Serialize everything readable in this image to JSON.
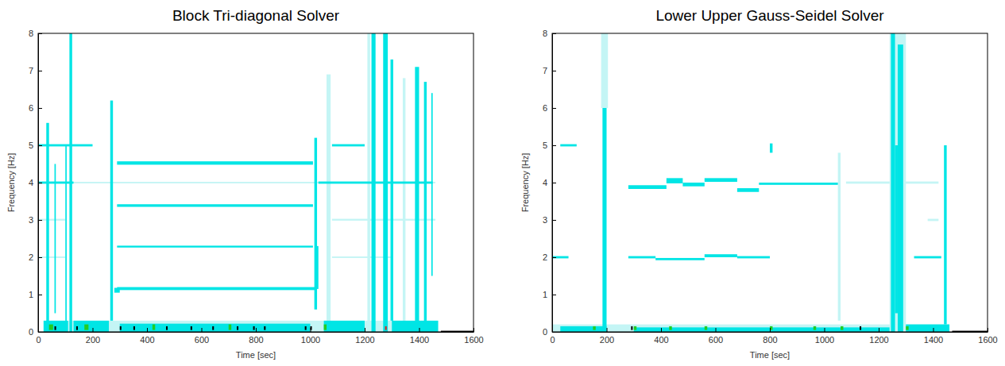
{
  "chart_data": [
    {
      "type": "heatmap",
      "title": "Block Tri-diagonal Solver",
      "x_label": "Time [sec]",
      "y_label": "Frequency [Hz]",
      "xlim": [
        0,
        1600
      ],
      "xticks": [
        0,
        200,
        400,
        600,
        800,
        1000,
        1200,
        1400,
        1600
      ],
      "ylim": [
        0,
        8
      ],
      "yticks": [
        0,
        1,
        2,
        3,
        4,
        5,
        6,
        7,
        8
      ],
      "grid": false,
      "layers": [
        {
          "color": "#c4f5f5",
          "cells": [
            [
              0,
              1460,
              3.98,
              4.02
            ],
            [
              0,
              100,
              2.98,
              3.03
            ],
            [
              1080,
              1460,
              2.98,
              3.03
            ],
            [
              0,
              100,
              1.98,
              2.02
            ],
            [
              1080,
              1300,
              1.98,
              2.02
            ],
            [
              1210,
              1220,
              0,
              8
            ],
            [
              1340,
              1350,
              0.3,
              6.8
            ],
            [
              20,
              1470,
              0,
              0.3
            ],
            [
              1060,
              1075,
              0.2,
              6.9
            ]
          ]
        },
        {
          "color": "#00e5e5",
          "cells": [
            [
              115,
              125,
              0,
              8
            ],
            [
              265,
              275,
              0.3,
              6.2
            ],
            [
              1015,
              1025,
              0.6,
              5.2
            ],
            [
              1225,
              1240,
              0,
              8
            ],
            [
              1268,
              1285,
              0,
              8
            ],
            [
              1295,
              1305,
              0.3,
              7.3
            ],
            [
              1385,
              1400,
              0,
              7.1
            ],
            [
              1418,
              1428,
              0.1,
              6.7
            ],
            [
              1445,
              1450,
              1.5,
              6.4
            ],
            [
              280,
              300,
              1.05,
              1.18
            ],
            [
              290,
              1020,
              1.12,
              1.2
            ],
            [
              290,
              1010,
              2.26,
              2.31
            ],
            [
              290,
              1010,
              3.35,
              3.42
            ],
            [
              290,
              1010,
              4.48,
              4.57
            ],
            [
              1020,
              1030,
              1.15,
              2.3
            ],
            [
              0,
              200,
              4.97,
              5.03
            ],
            [
              1080,
              1200,
              4.97,
              5.03
            ],
            [
              0,
              130,
              3.97,
              4.03
            ],
            [
              1030,
              1450,
              3.97,
              4.03
            ],
            [
              30,
              40,
              0,
              5.6
            ],
            [
              60,
              65,
              0.5,
              4.5
            ],
            [
              100,
              105,
              0,
              5
            ],
            [
              20,
              110,
              0,
              0.3
            ],
            [
              130,
              260,
              0,
              0.3
            ],
            [
              300,
              1000,
              0,
              0.22
            ],
            [
              1050,
              1200,
              0,
              0.3
            ],
            [
              1300,
              1470,
              0,
              0.3
            ]
          ]
        },
        {
          "color": "#22cc22",
          "cells": [
            [
              40,
              55,
              0.05,
              0.2
            ],
            [
              170,
              185,
              0.05,
              0.2
            ],
            [
              420,
              430,
              0.05,
              0.2
            ],
            [
              700,
              710,
              0.05,
              0.2
            ],
            [
              1050,
              1060,
              0.05,
              0.2
            ]
          ]
        },
        {
          "color": "#000000",
          "cells": [
            [
              60,
              66,
              0.05,
              0.15
            ],
            [
              140,
              146,
              0.05,
              0.15
            ],
            [
              300,
              306,
              0.05,
              0.15
            ],
            [
              350,
              356,
              0.05,
              0.15
            ],
            [
              470,
              476,
              0.05,
              0.15
            ],
            [
              560,
              566,
              0.05,
              0.15
            ],
            [
              640,
              646,
              0.05,
              0.15
            ],
            [
              730,
              736,
              0.05,
              0.15
            ],
            [
              790,
              796,
              0.05,
              0.15
            ],
            [
              830,
              836,
              0.05,
              0.15
            ],
            [
              980,
              986,
              0.05,
              0.15
            ],
            [
              1000,
              1006,
              0.05,
              0.15
            ],
            [
              1480,
              1600,
              0,
              0.03
            ]
          ]
        },
        {
          "color": "#dd2222",
          "cells": [
            [
              1275,
              1281,
              0.05,
              0.15
            ]
          ]
        }
      ]
    },
    {
      "type": "heatmap",
      "title": "Lower Upper Gauss-Seidel Solver",
      "x_label": "Time [sec]",
      "y_label": "Frequency [Hz]",
      "xlim": [
        0,
        1600
      ],
      "xticks": [
        0,
        200,
        400,
        600,
        800,
        1000,
        1200,
        1400,
        1600
      ],
      "ylim": [
        0,
        8
      ],
      "yticks": [
        0,
        1,
        2,
        3,
        4,
        5,
        6,
        7,
        8
      ],
      "grid": false,
      "layers": [
        {
          "color": "#c4f5f5",
          "cells": [
            [
              180,
              205,
              6,
              8
            ],
            [
              1080,
              1420,
              3.97,
              4.03
            ],
            [
              1240,
              1300,
              0,
              8
            ],
            [
              0,
              1460,
              0,
              0.2
            ],
            [
              1380,
              1420,
              2.97,
              3.03
            ],
            [
              1050,
              1060,
              0.3,
              4.8
            ]
          ]
        },
        {
          "color": "#00e5e5",
          "cells": [
            [
              185,
              200,
              0,
              6
            ],
            [
              1245,
              1260,
              0,
              8
            ],
            [
              1270,
              1290,
              0,
              7.7
            ],
            [
              1260,
              1270,
              0.5,
              5
            ],
            [
              280,
              420,
              3.83,
              3.93
            ],
            [
              420,
              480,
              3.98,
              4.12
            ],
            [
              480,
              560,
              3.9,
              4.0
            ],
            [
              560,
              680,
              4.02,
              4.12
            ],
            [
              680,
              760,
              3.75,
              3.85
            ],
            [
              760,
              1050,
              3.94,
              4.0
            ],
            [
              280,
              380,
              1.97,
              2.03
            ],
            [
              380,
              560,
              1.92,
              1.98
            ],
            [
              560,
              680,
              2.0,
              2.08
            ],
            [
              680,
              800,
              1.97,
              2.03
            ],
            [
              0,
              60,
              1.97,
              2.03
            ],
            [
              1330,
              1430,
              1.97,
              2.03
            ],
            [
              30,
              90,
              4.97,
              5.03
            ],
            [
              800,
              810,
              4.8,
              5.05
            ],
            [
              1440,
              1450,
              0.2,
              5
            ],
            [
              30,
              200,
              0,
              0.15
            ],
            [
              300,
              1240,
              0,
              0.12
            ],
            [
              1300,
              1460,
              0,
              0.2
            ]
          ]
        },
        {
          "color": "#22cc22",
          "cells": [
            [
              150,
              160,
              0.05,
              0.15
            ],
            [
              300,
              310,
              0.05,
              0.15
            ],
            [
              430,
              440,
              0.05,
              0.15
            ],
            [
              560,
              570,
              0.05,
              0.15
            ],
            [
              800,
              810,
              0.05,
              0.15
            ],
            [
              960,
              970,
              0.05,
              0.15
            ],
            [
              1060,
              1070,
              0.05,
              0.15
            ],
            [
              1300,
              1310,
              0.05,
              0.15
            ]
          ]
        },
        {
          "color": "#000000",
          "cells": [
            [
              290,
              296,
              0.05,
              0.15
            ],
            [
              1130,
              1136,
              0.05,
              0.15
            ],
            [
              1470,
              1600,
              0,
              0.03
            ]
          ]
        }
      ]
    }
  ]
}
